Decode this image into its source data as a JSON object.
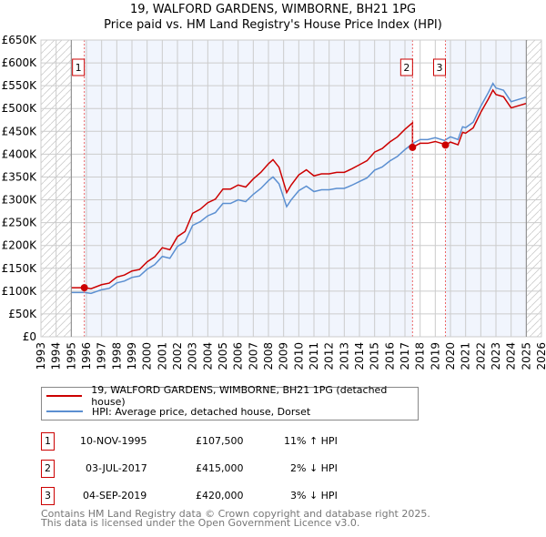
{
  "chart_data": {
    "type": "line",
    "title": "19, WALFORD GARDENS, WIMBORNE, BH21 1PG",
    "subtitle": "Price paid vs. HM Land Registry's House Price Index (HPI)",
    "xlim": [
      1993,
      2026
    ],
    "ylim": [
      0,
      650000
    ],
    "x_ticks": [
      "1993",
      "1994",
      "1995",
      "1996",
      "1997",
      "1998",
      "1999",
      "2000",
      "2001",
      "2002",
      "2003",
      "2004",
      "2005",
      "2006",
      "2007",
      "2008",
      "2009",
      "2010",
      "2011",
      "2012",
      "2013",
      "2014",
      "2015",
      "2016",
      "2017",
      "2018",
      "2019",
      "2020",
      "2021",
      "2022",
      "2023",
      "2024",
      "2025",
      "2026"
    ],
    "y_ticks": [
      "£0",
      "£50K",
      "£100K",
      "£150K",
      "£200K",
      "£250K",
      "£300K",
      "£350K",
      "£400K",
      "£450K",
      "£500K",
      "£550K",
      "£600K",
      "£650K"
    ],
    "grid": true,
    "hpi_x": [
      1995,
      1995.9,
      1996.3,
      1997,
      1997.5,
      1998,
      1998.5,
      1999,
      1999.5,
      2000,
      2000.5,
      2001,
      2001.5,
      2002,
      2002.5,
      2003,
      2003.5,
      2004,
      2004.5,
      2005,
      2005.5,
      2006,
      2006.5,
      2007,
      2007.5,
      2008,
      2008.3,
      2008.7,
      2009.2,
      2009.5,
      2010,
      2010.5,
      2011,
      2011.5,
      2012,
      2012.5,
      2013,
      2013.5,
      2014,
      2014.5,
      2015,
      2015.5,
      2016,
      2016.5,
      2017,
      2017.5,
      2018,
      2018.5,
      2019,
      2019.6,
      2020,
      2020.5,
      2020.8,
      2021,
      2021.5,
      2022,
      2022.5,
      2022.8,
      2023,
      2023.5,
      2024,
      2024.5,
      2025
    ],
    "hpi_y": [
      97000,
      97000,
      95000,
      103000,
      106000,
      118000,
      122000,
      130000,
      133000,
      148000,
      158000,
      176000,
      172000,
      198000,
      208000,
      244000,
      252000,
      265000,
      272000,
      292000,
      292000,
      300000,
      296000,
      312000,
      325000,
      342000,
      350000,
      335000,
      285000,
      300000,
      320000,
      330000,
      318000,
      322000,
      322000,
      325000,
      325000,
      332000,
      340000,
      348000,
      365000,
      372000,
      385000,
      395000,
      410000,
      423000,
      432000,
      432000,
      436000,
      430000,
      438000,
      432000,
      460000,
      458000,
      470000,
      505000,
      535000,
      555000,
      545000,
      540000,
      515000,
      520000,
      525000
    ],
    "series": [
      {
        "name": "19, WALFORD GARDENS, WIMBORNE, BH21 1PG (detached house)",
        "color": "#cc0000"
      },
      {
        "name": "HPI: Average price, detached house, Dorset",
        "color": "#5b8fd1"
      }
    ],
    "sales": [
      {
        "n": "1",
        "date": "10-NOV-1995",
        "x": 1995.86,
        "price": "£107,500",
        "value": 107500,
        "hpi": "11% ↑ HPI"
      },
      {
        "n": "2",
        "date": "03-JUL-2017",
        "x": 2017.5,
        "price": "£415,000",
        "value": 415000,
        "hpi": "2% ↓ HPI"
      },
      {
        "n": "3",
        "date": "04-SEP-2019",
        "x": 2019.67,
        "price": "£420,000",
        "value": 420000,
        "hpi": "3% ↓ HPI"
      }
    ]
  },
  "footer": {
    "line1": "Contains HM Land Registry data © Crown copyright and database right 2025.",
    "line2": "This data is licensed under the Open Government Licence v3.0."
  }
}
